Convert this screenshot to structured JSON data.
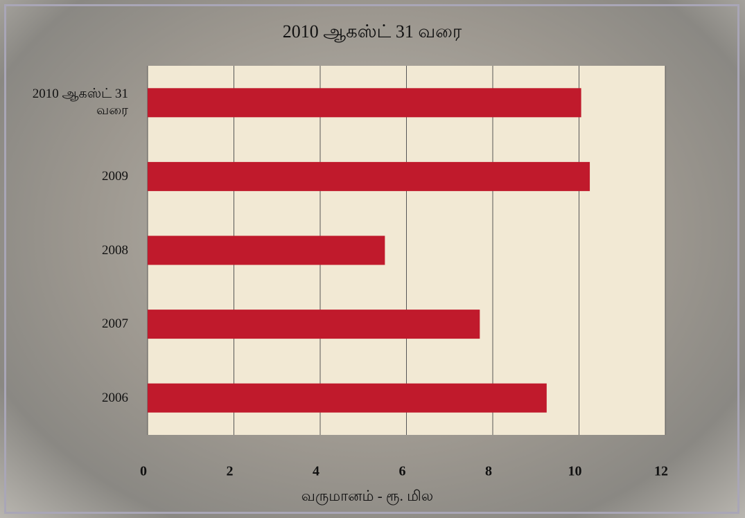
{
  "chart_data": {
    "type": "bar",
    "orientation": "horizontal",
    "title": "2010 ஆகஸ்ட் 31 வரை",
    "x_label": "வருமானம் - ரூ. மில",
    "categories": [
      "2010 ஆகஸ்ட் 31 வரை",
      "2009",
      "2008",
      "2007",
      "2006"
    ],
    "values": [
      10.05,
      10.25,
      5.5,
      7.7,
      9.25
    ],
    "color": "#c01a2c",
    "xlim": [
      0,
      12
    ],
    "xticks": [
      0,
      2,
      4,
      6,
      8,
      10,
      12
    ],
    "grid": true
  }
}
